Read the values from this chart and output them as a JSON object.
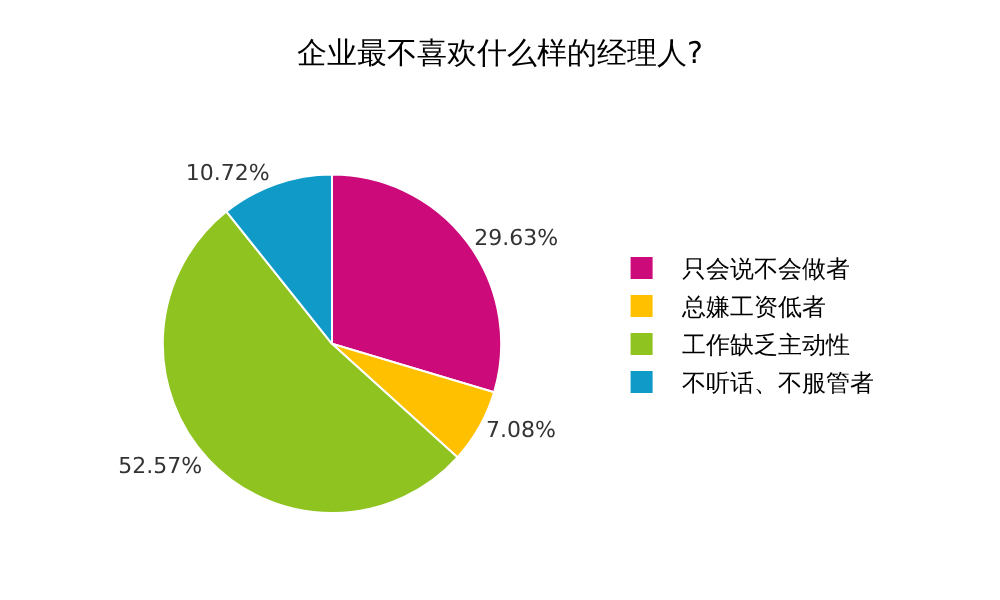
{
  "chart_data": {
    "type": "pie",
    "title": "企业最不喜欢什么样的经理人?",
    "categories": [
      "只会说不会做者",
      "总嫌工资低者",
      "工作缺乏主动性",
      "不听话、不服管者"
    ],
    "values": [
      29.63,
      7.08,
      52.57,
      10.72
    ],
    "colors": [
      "#cc0a7a",
      "#ffc000",
      "#8fc31f",
      "#0f9ac8"
    ],
    "value_labels": [
      "29.63%",
      "7.08%",
      "52.57%",
      "10.72%"
    ],
    "legend": "right"
  }
}
